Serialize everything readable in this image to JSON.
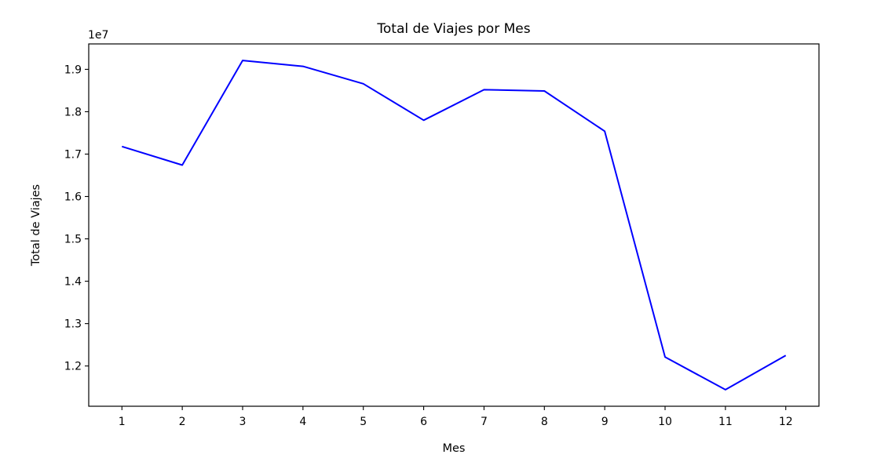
{
  "chart_data": {
    "type": "line",
    "title": "Total de Viajes por Mes",
    "xlabel": "Mes",
    "ylabel": "Total de Viajes",
    "y_offset_label": "1e7",
    "x": [
      1,
      2,
      3,
      4,
      5,
      6,
      7,
      8,
      9,
      10,
      11,
      12
    ],
    "series": [
      {
        "values": [
          17180000,
          16740000,
          19210000,
          19070000,
          18660000,
          17800000,
          18520000,
          18490000,
          17540000,
          12210000,
          11440000,
          12250000
        ],
        "color": "#0000ff"
      }
    ],
    "xlim": [
      0.45,
      12.55
    ],
    "ylim": [
      11050000,
      19600000
    ],
    "x_ticks": [
      {
        "value": 1,
        "label": "1"
      },
      {
        "value": 2,
        "label": "2"
      },
      {
        "value": 3,
        "label": "3"
      },
      {
        "value": 4,
        "label": "4"
      },
      {
        "value": 5,
        "label": "5"
      },
      {
        "value": 6,
        "label": "6"
      },
      {
        "value": 7,
        "label": "7"
      },
      {
        "value": 8,
        "label": "8"
      },
      {
        "value": 9,
        "label": "9"
      },
      {
        "value": 10,
        "label": "10"
      },
      {
        "value": 11,
        "label": "11"
      },
      {
        "value": 12,
        "label": "12"
      }
    ],
    "y_ticks": [
      {
        "value": 12000000,
        "label": "1.2"
      },
      {
        "value": 13000000,
        "label": "1.3"
      },
      {
        "value": 14000000,
        "label": "1.4"
      },
      {
        "value": 15000000,
        "label": "1.5"
      },
      {
        "value": 16000000,
        "label": "1.6"
      },
      {
        "value": 17000000,
        "label": "1.7"
      },
      {
        "value": 18000000,
        "label": "1.8"
      },
      {
        "value": 19000000,
        "label": "1.9"
      }
    ],
    "grid": false,
    "legend": "none"
  }
}
